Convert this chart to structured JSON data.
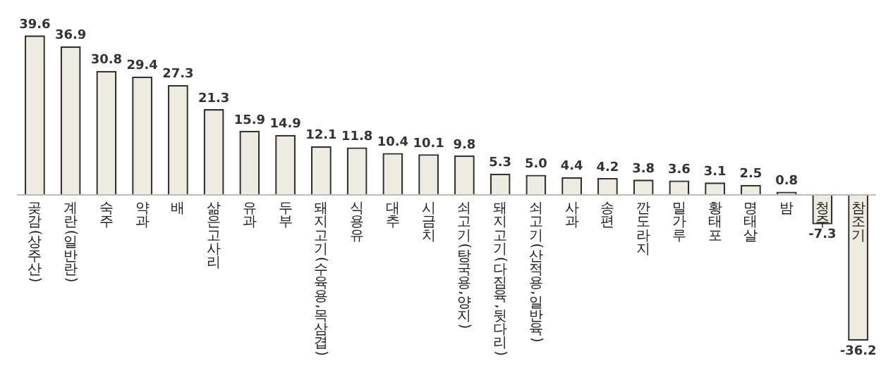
{
  "chart_data": {
    "type": "bar",
    "categories": [
      "곶감(상주산)",
      "계란(일반란)",
      "숙주",
      "약과",
      "배",
      "삶은고사리",
      "유과",
      "두부",
      "돼지고기(수육용,목삼겹)",
      "식용유",
      "대추",
      "시금치",
      "쇠고기(탕국용,양지)",
      "돼지고기(다짐육,뒷다리)",
      "쇠고기(산적용,일반육)",
      "사과",
      "송편",
      "깐도라지",
      "밀가루",
      "황태포",
      "명태살",
      "밤",
      "청주",
      "참조기"
    ],
    "values": [
      39.6,
      36.9,
      30.8,
      29.4,
      27.3,
      21.3,
      15.9,
      14.9,
      12.1,
      11.8,
      10.4,
      10.1,
      9.8,
      5.3,
      5.0,
      4.4,
      4.2,
      3.8,
      3.6,
      3.1,
      2.5,
      0.8,
      -7.3,
      -36.2
    ],
    "value_labels": [
      "39.6",
      "36.9",
      "30.8",
      "29.4",
      "27.3",
      "21.3",
      "15.9",
      "14.9",
      "12.1",
      "11.8",
      "10.4",
      "10.1",
      "9.8",
      "5.3",
      "5.0",
      "4.4",
      "4.2",
      "3.8",
      "3.6",
      "3.1",
      "2.5",
      "0.8",
      "-7.3",
      "-36.2"
    ],
    "color": "#eeebe0"
  }
}
